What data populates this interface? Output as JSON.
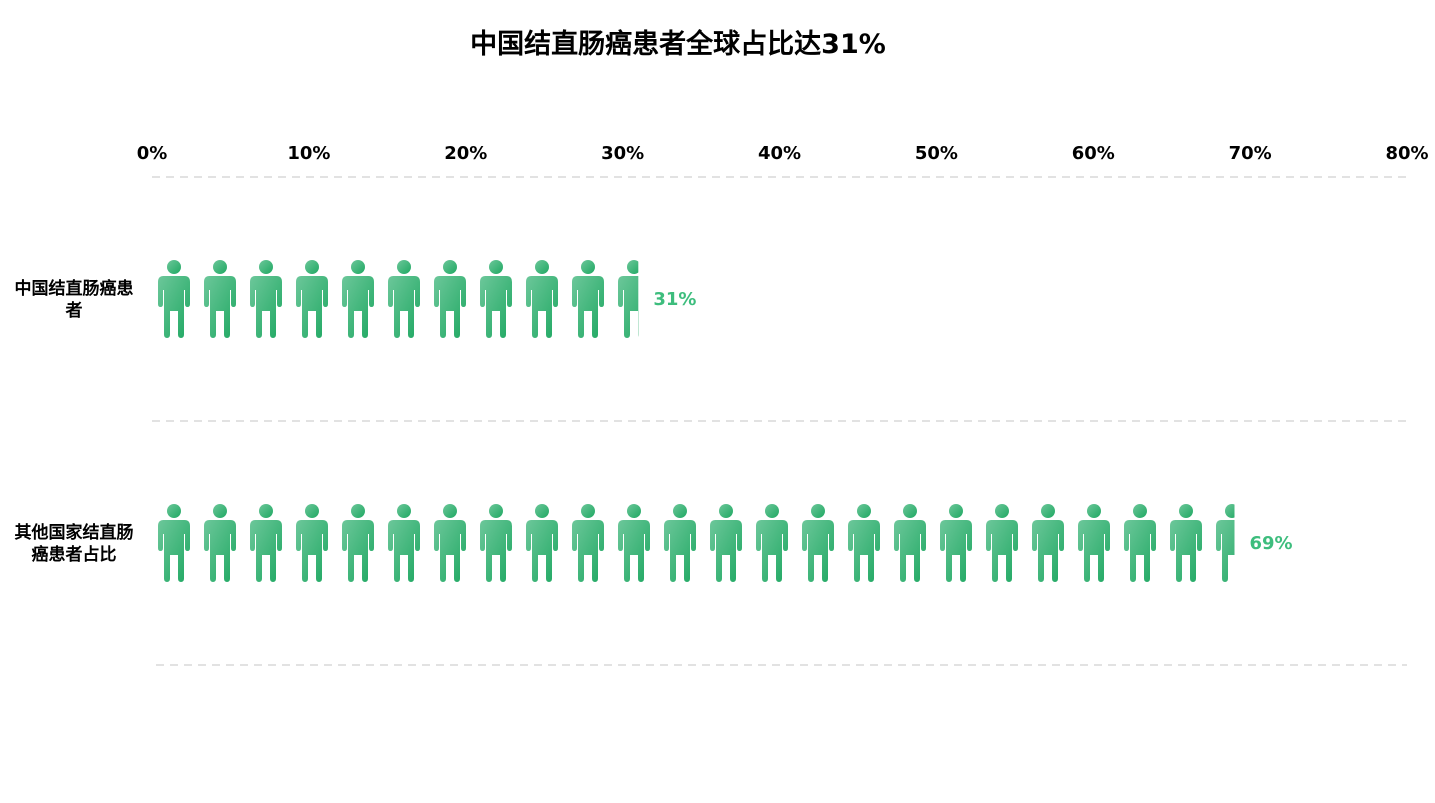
{
  "chart_data": {
    "type": "bar",
    "subtype": "pictorial-person-icons",
    "title": "中国结直肠癌患者全球占比达31%",
    "categories": [
      [
        "中国结直肠癌患",
        "者"
      ],
      [
        "其他国家结直肠",
        "癌患者占比"
      ]
    ],
    "values": [
      31,
      69
    ],
    "value_labels": [
      "31%",
      "69%"
    ],
    "x_ticks": [
      "0%",
      "10%",
      "20%",
      "30%",
      "40%",
      "50%",
      "60%",
      "70%",
      "80%"
    ],
    "xlim": [
      0,
      80
    ],
    "x_axis_position": "top",
    "grid": "horizontal dashed separators",
    "legend": "none",
    "icon": "person-icon"
  },
  "colors": {
    "icon_gradient_start": "#6cc79a",
    "icon_gradient_end": "#1fa862",
    "value_label": "#3dbd7d",
    "gridline": "#d9d9d9",
    "text": "#000000"
  }
}
